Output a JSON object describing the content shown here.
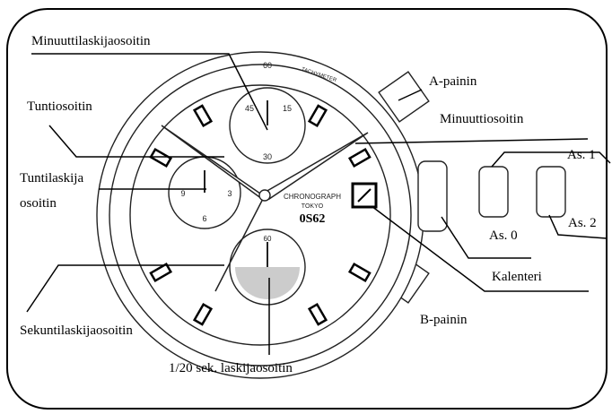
{
  "labels": {
    "minute_counter_hand": "Minuuttilaskijaosoitin",
    "button_a": "A-painin",
    "hour_hand": "Tuntiosoitin",
    "minute_hand": "Minuuttiosoitin",
    "crown_position_1": "As. 1",
    "hour_counter_hand": [
      "Tuntilaskija",
      "osoitin"
    ],
    "crown_position_0": "As. 0",
    "crown_position_2": "As. 2",
    "calendar": "Kalenteri",
    "second_counter_hand": "Sekuntilaskijaosoitin",
    "button_b": "B-painin",
    "twentieth_second_hand": "1/20 sek. laskijaosoitin"
  },
  "dial": {
    "bezel_top": "60",
    "tachymeter": "TACHYMETER",
    "upper_subdial": [
      "45",
      "15",
      "30"
    ],
    "left_subdial": [
      "9",
      "3",
      "6"
    ],
    "lower_subdial": "60",
    "brand": "CHRONOGRAPH",
    "city": "TOKYO",
    "caliber": "0S62"
  }
}
